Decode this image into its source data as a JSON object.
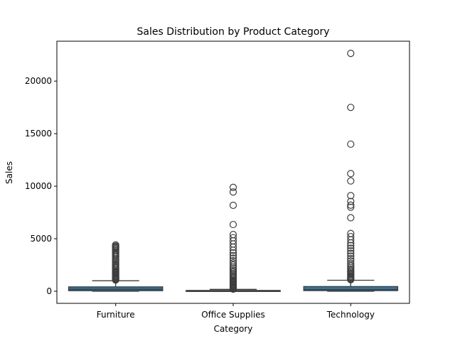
{
  "chart_data": {
    "type": "box",
    "title": "Sales Distribution by Product Category",
    "xlabel": "Category",
    "ylabel": "Sales",
    "ylim": [
      -1150,
      23800
    ],
    "yticks": [
      0,
      5000,
      10000,
      15000,
      20000
    ],
    "grid": false,
    "legend": "none",
    "categories": [
      "Furniture",
      "Office Supplies",
      "Technology"
    ],
    "box_color": "#3274a1",
    "line_color": "#3d3d3d",
    "boxes": [
      {
        "category": "Furniture",
        "q1": 50,
        "median": 180,
        "q3": 420,
        "whisker_low": 1,
        "whisker_high": 1000,
        "outliers": [
          4410,
          4300,
          4230,
          4150,
          4050,
          3950,
          3850,
          3700,
          3580,
          3480,
          3350,
          3250,
          3100,
          2980,
          2850,
          2700,
          2580,
          2450,
          2330,
          2220,
          2100,
          2000,
          1900,
          1800,
          1720,
          1640,
          1560,
          1480,
          1400,
          1330,
          1260,
          1190,
          1130,
          1070
        ]
      },
      {
        "category": "Office Supplies",
        "q1": 15,
        "median": 30,
        "q3": 80,
        "whisker_low": 0,
        "whisker_high": 180,
        "outliers": [
          9890,
          9450,
          8180,
          6350,
          5400,
          5100,
          4800,
          4500,
          4200,
          3900,
          3650,
          3400,
          3150,
          2900,
          2700,
          2500,
          2300,
          2150,
          2000,
          1850,
          1700,
          1580,
          1460,
          1340,
          1230,
          1120,
          1020,
          920,
          830,
          750,
          670,
          600,
          530,
          460,
          400,
          340,
          290,
          240,
          200
        ]
      },
      {
        "category": "Technology",
        "q1": 60,
        "median": 160,
        "q3": 450,
        "whisker_low": 1,
        "whisker_high": 1050,
        "outliers": [
          22640,
          17500,
          14000,
          11200,
          10500,
          9100,
          8550,
          8200,
          8000,
          7000,
          5500,
          5200,
          4900,
          4600,
          4350,
          4100,
          3850,
          3600,
          3350,
          3100,
          2880,
          2650,
          2450,
          2280,
          2120,
          1980,
          1850,
          1730,
          1620,
          1520,
          1420,
          1330,
          1240,
          1160,
          1100
        ]
      }
    ]
  }
}
